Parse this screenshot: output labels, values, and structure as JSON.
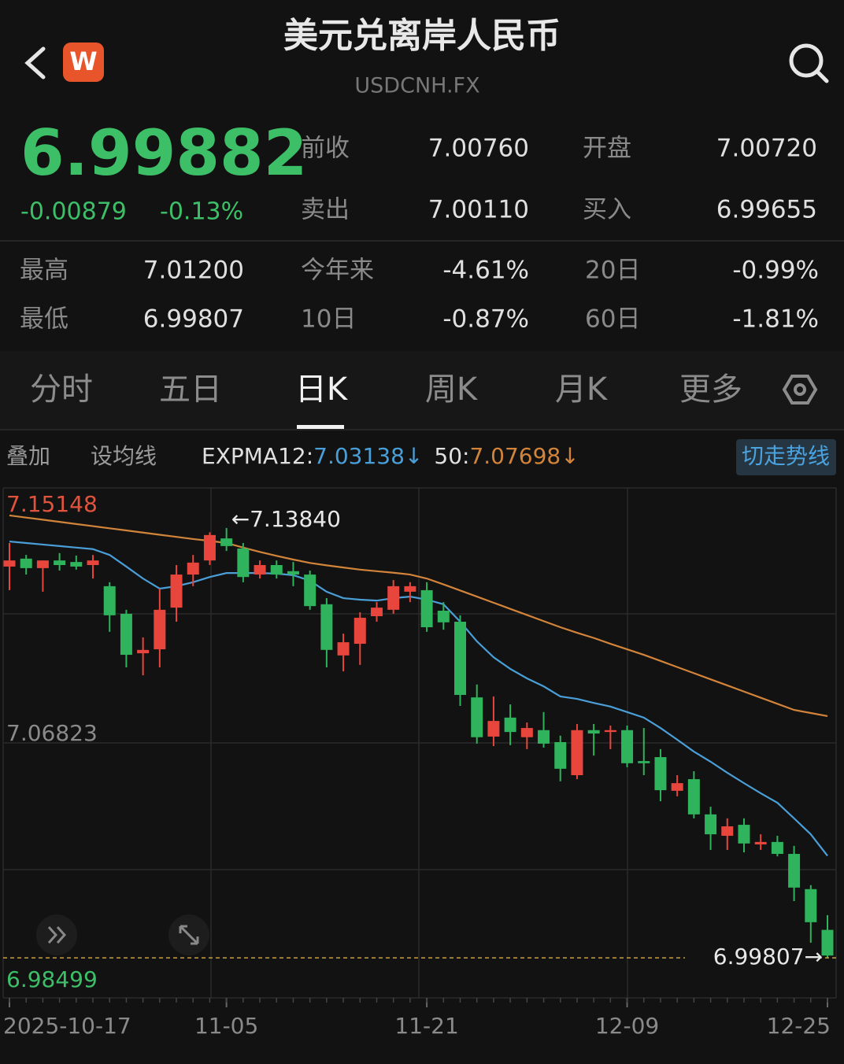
{
  "header": {
    "logo": "W",
    "title": "美元兑离岸人民币",
    "subtitle": "USDCNH.FX"
  },
  "quote": {
    "price": "6.99882",
    "change": "-0.00879",
    "change_pct": "-0.13%"
  },
  "side_stats": [
    [
      [
        "前收",
        "7.00760"
      ],
      [
        "开盘",
        "7.00720"
      ]
    ],
    [
      [
        "卖出",
        "7.00110"
      ],
      [
        "买入",
        "6.99655"
      ]
    ]
  ],
  "stats": [
    [
      [
        "最高",
        "7.01200"
      ],
      [
        "今年来",
        "-4.61%"
      ],
      [
        "20日",
        "-0.99%"
      ]
    ],
    [
      [
        "最低",
        "6.99807"
      ],
      [
        "10日",
        "-0.87%"
      ],
      [
        "60日",
        "-1.81%"
      ]
    ]
  ],
  "tabs": [
    "分时",
    "五日",
    "日K",
    "周K",
    "月K",
    "更多"
  ],
  "toolbar": {
    "overlay": "叠加",
    "set_ma": "设均线",
    "switch": "切走势线"
  },
  "chart_data": {
    "type": "candlestick",
    "categories": [
      "2025-10-17",
      null,
      null,
      null,
      null,
      null,
      null,
      null,
      null,
      null,
      null,
      null,
      null,
      "11-05",
      null,
      null,
      null,
      null,
      null,
      null,
      null,
      null,
      null,
      null,
      null,
      "11-21",
      null,
      null,
      null,
      null,
      null,
      null,
      null,
      null,
      null,
      null,
      null,
      "12-09",
      null,
      null,
      null,
      null,
      null,
      null,
      null,
      null,
      null,
      null,
      null,
      "12-25"
    ],
    "open": [
      7.1258,
      7.1284,
      7.1253,
      7.1278,
      7.1273,
      7.1263,
      7.1194,
      7.1104,
      7.0975,
      7.0988,
      7.1124,
      7.1232,
      7.1278,
      7.135,
      7.1317,
      7.1232,
      7.1263,
      7.1243,
      7.1232,
      7.1135,
      7.0968,
      7.1006,
      7.1096,
      7.1117,
      7.1176,
      7.1181,
      7.1114,
      7.1078,
      7.0831,
      7.0703,
      7.0765,
      7.0701,
      7.0724,
      7.0685,
      7.0577,
      7.0724,
      7.0718,
      7.0724,
      7.0623,
      7.0636,
      7.0526,
      7.0564,
      7.0449,
      7.0379,
      7.0415,
      7.0351,
      7.0359,
      7.032,
      7.0205,
      7.0072
    ],
    "high": [
      7.1335,
      7.1296,
      7.1278,
      7.1302,
      7.1294,
      7.1296,
      7.1207,
      7.1117,
      7.1027,
      7.1186,
      7.1263,
      7.1296,
      7.137,
      7.1384,
      7.1335,
      7.1278,
      7.1278,
      7.1273,
      7.1245,
      7.1155,
      7.1039,
      7.1109,
      7.1142,
      7.1214,
      7.1207,
      7.1207,
      7.1142,
      7.1099,
      7.0873,
      7.0834,
      7.0808,
      7.0749,
      7.0783,
      7.0706,
      7.0744,
      7.0744,
      7.0739,
      7.0739,
      7.0731,
      7.0662,
      7.0577,
      7.059,
      7.0474,
      7.0436,
      7.0436,
      7.0384,
      7.0379,
      7.0346,
      7.0218,
      7.012
    ],
    "low": [
      7.1181,
      7.1232,
      7.1176,
      7.1245,
      7.1248,
      7.1219,
      7.1045,
      7.0929,
      7.0903,
      7.0929,
      7.1078,
      7.1194,
      7.1263,
      7.1309,
      7.1207,
      7.1219,
      7.1219,
      7.1194,
      7.1117,
      7.0929,
      7.0916,
      7.0937,
      7.1078,
      7.1104,
      7.1142,
      7.1045,
      7.1052,
      7.0803,
      7.068,
      7.0672,
      7.0675,
      7.0662,
      7.0667,
      7.0557,
      7.0564,
      7.0641,
      7.0662,
      7.0603,
      7.0577,
      7.0492,
      7.0508,
      7.0436,
      7.0333,
      7.0333,
      7.0325,
      7.0333,
      7.0312,
      7.0166,
      7.003,
      6.99807
    ],
    "close": [
      7.1278,
      7.1253,
      7.1278,
      7.1263,
      7.1258,
      7.1278,
      7.1099,
      7.097,
      7.0986,
      7.1117,
      7.1232,
      7.1271,
      7.1361,
      7.1325,
      7.1224,
      7.1263,
      7.1232,
      7.1232,
      7.1129,
      7.0986,
      7.1011,
      7.1091,
      7.1124,
      7.1194,
      7.1194,
      7.106,
      7.1076,
      7.0839,
      7.0701,
      7.0754,
      7.0718,
      7.0731,
      7.068,
      7.0598,
      7.0724,
      7.0713,
      7.0724,
      7.0616,
      7.0616,
      7.0528,
      7.0551,
      7.0449,
      7.0384,
      7.041,
      7.0354,
      7.0359,
      7.032,
      7.021,
      7.0097,
      6.99882
    ],
    "up_color": "#e8453c",
    "down_color": "#2fb35c",
    "series": [
      {
        "name": "EXPMA12:",
        "readout": "7.03138↓",
        "color": "#4a9fd8",
        "values": [
          7.134,
          7.1335,
          7.133,
          7.1325,
          7.132,
          7.1315,
          7.1296,
          7.1258,
          7.1219,
          7.1186,
          7.1194,
          7.1207,
          7.1224,
          7.1237,
          7.1237,
          7.1237,
          7.1235,
          7.123,
          7.1212,
          7.1176,
          7.1155,
          7.115,
          7.1147,
          7.1155,
          7.116,
          7.115,
          7.1135,
          7.1078,
          7.1014,
          7.0962,
          7.0924,
          7.0893,
          7.0867,
          7.0834,
          7.0826,
          7.0813,
          7.0801,
          7.0783,
          7.0765,
          7.0731,
          7.0693,
          7.0654,
          7.0621,
          7.0585,
          7.0551,
          7.0518,
          7.0487,
          7.0436,
          7.0384,
          7.03138
        ]
      },
      {
        "name": "50:",
        "readout": "7.07698↓",
        "color": "#d2843a",
        "values": [
          7.1425,
          7.1418,
          7.1411,
          7.1404,
          7.1397,
          7.139,
          7.1383,
          7.1376,
          7.1369,
          7.1362,
          7.1355,
          7.1348,
          7.1342,
          7.1335,
          7.132,
          7.1306,
          7.1293,
          7.1281,
          7.127,
          7.1262,
          7.1255,
          7.1248,
          7.1243,
          7.1238,
          7.1232,
          7.1219,
          7.12,
          7.118,
          7.116,
          7.114,
          7.112,
          7.11,
          7.108,
          7.106,
          7.1042,
          7.1025,
          7.1006,
          7.0988,
          7.097,
          7.095,
          7.093,
          7.091,
          7.089,
          7.087,
          7.085,
          7.083,
          7.081,
          7.079,
          7.078,
          7.07698
        ]
      }
    ],
    "annotations": {
      "high": "←7.13840",
      "low": "6.99807→"
    },
    "ylim": [
      6.98499,
      7.15148
    ],
    "yticks": [
      7.15148,
      7.06823,
      6.98499
    ],
    "grid": true
  }
}
